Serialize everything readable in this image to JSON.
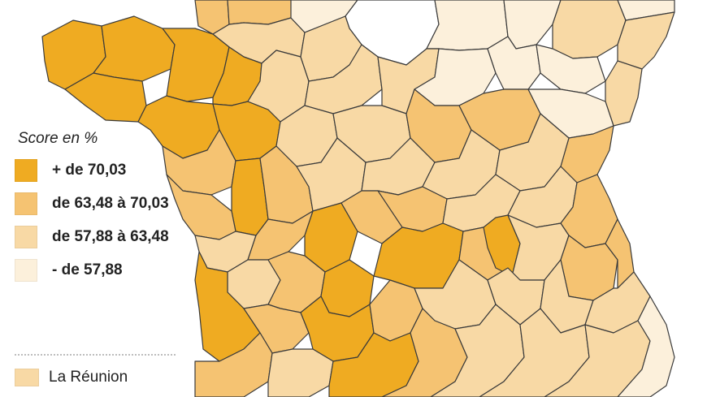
{
  "colors": {
    "very_high": "#EFAB22",
    "high": "#F5C372",
    "medium": "#F8D9A5",
    "low": "#FCF0DB",
    "none": "#FFFFFF",
    "border": "#3a3a3a"
  },
  "legend": {
    "title": "Score en %",
    "items": [
      {
        "label": "+ de 70,03",
        "class": "very_high"
      },
      {
        "label": "de 63,48 à 70,03",
        "class": "high"
      },
      {
        "label": "de 57,88 à 63,48",
        "class": "medium"
      },
      {
        "label": "- de 57,88",
        "class": "low"
      }
    ]
  },
  "overseas": {
    "label": "La Réunion",
    "class": "medium"
  }
}
